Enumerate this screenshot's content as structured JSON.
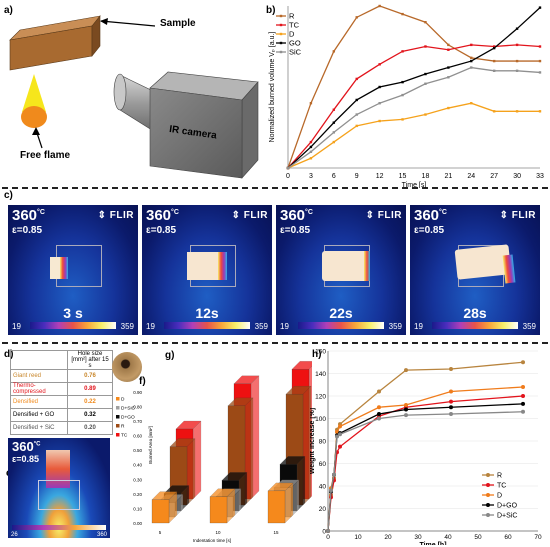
{
  "panels": {
    "a": "a)",
    "b": "b)",
    "c": "c)",
    "d": "d)",
    "e": "e)",
    "f": "f)",
    "g": "g)",
    "h": "h)"
  },
  "panel_a": {
    "sample_label": "Sample",
    "flame_label": "Free flame",
    "camera_label": "IR camera"
  },
  "thermal": {
    "temperature": "360",
    "unit": "°C",
    "emissivity": "ε=0.85",
    "brand": "FLIR",
    "scale_min": "19",
    "scale_max": "359",
    "frames": [
      {
        "time": "3 s"
      },
      {
        "time": "12s"
      },
      {
        "time": "22s"
      },
      {
        "time": "28s"
      }
    ]
  },
  "panel_d": {
    "header": "Hole size [mm²] after 15 s",
    "rows": [
      {
        "name": "Giant reed",
        "value": "0.76",
        "color": "#c8862a"
      },
      {
        "name": "Thermo-compressed",
        "value": "0.89",
        "color": "#e2141c"
      },
      {
        "name": "Densified",
        "value": "0.22",
        "color": "#f08a1c"
      },
      {
        "name": "Densified + GO",
        "value": "0.32",
        "color": "#000000"
      },
      {
        "name": "Densified + SiC",
        "value": "0.20",
        "color": "#555555"
      }
    ]
  },
  "panel_e": {
    "temperature": "360",
    "unit": "°C",
    "emissivity": "ε=0.85",
    "scale_min": "26",
    "scale_max": "360"
  },
  "chart_data": [
    {
      "id": "b",
      "type": "line",
      "title": "",
      "xlabel": "Time [s]",
      "ylabel": "Normalized burned volume Vₚ [a.u.]",
      "x": [
        0,
        3,
        6,
        9,
        12,
        15,
        18,
        21,
        24,
        27,
        30,
        33
      ],
      "xlim": [
        0,
        33
      ],
      "ylim": [
        0,
        1
      ],
      "legend": "top-left",
      "series": [
        {
          "name": "R",
          "color": "#b8692a",
          "values": [
            0,
            0.4,
            0.72,
            0.93,
            1.0,
            0.95,
            0.9,
            0.76,
            0.68,
            0.66,
            0.66,
            0.66
          ]
        },
        {
          "name": "TC",
          "color": "#e2141c",
          "values": [
            0,
            0.16,
            0.36,
            0.55,
            0.64,
            0.72,
            0.75,
            0.73,
            0.76,
            0.75,
            0.76,
            0.75
          ]
        },
        {
          "name": "D",
          "color": "#f5a21c",
          "values": [
            0,
            0.06,
            0.16,
            0.26,
            0.29,
            0.3,
            0.33,
            0.37,
            0.4,
            0.35,
            0.35,
            0.35
          ]
        },
        {
          "name": "GO",
          "color": "#000000",
          "values": [
            0,
            0.13,
            0.28,
            0.42,
            0.5,
            0.53,
            0.58,
            0.62,
            0.66,
            0.74,
            0.86,
            0.99
          ]
        },
        {
          "name": "SiC",
          "color": "#909090",
          "values": [
            0,
            0.1,
            0.22,
            0.33,
            0.4,
            0.45,
            0.52,
            0.56,
            0.62,
            0.6,
            0.6,
            0.59
          ]
        }
      ]
    },
    {
      "id": "g",
      "type": "bar",
      "title": "",
      "xlabel": "Indentation time [s]",
      "ylabel": "Burned Area [mm²]",
      "categories": [
        "5",
        "10",
        "15"
      ],
      "yticks": [
        "0.00",
        "0.10",
        "0.20",
        "0.30",
        "0.40",
        "0.50",
        "0.60",
        "0.70",
        "0.80",
        "0.90"
      ],
      "ylim": [
        0,
        1.2
      ],
      "legend": "left",
      "series": [
        {
          "name": "D",
          "color": "#f5891c",
          "values": [
            0.16,
            0.18,
            0.22
          ]
        },
        {
          "name": "D+SiC",
          "color": "#a0a0a0",
          "values": [
            0.1,
            0.14,
            0.2
          ]
        },
        {
          "name": "D+GO",
          "color": "#0a0a0a",
          "values": [
            0.12,
            0.21,
            0.32
          ]
        },
        {
          "name": "R",
          "color": "#9c4a16",
          "values": [
            0.4,
            0.68,
            0.76
          ]
        },
        {
          "name": "TC",
          "color": "#ee1111",
          "values": [
            0.48,
            0.79,
            0.89
          ]
        }
      ]
    },
    {
      "id": "h",
      "type": "line",
      "title": "",
      "xlabel": "Time [h]",
      "ylabel": "Weight increase [%]",
      "x": [
        0,
        1,
        2,
        3,
        4,
        17,
        26,
        41,
        65
      ],
      "xlim": [
        0,
        70
      ],
      "ylim": [
        0,
        160
      ],
      "xticks": [
        0,
        10,
        20,
        30,
        40,
        50,
        60,
        70
      ],
      "yticks": [
        0,
        20,
        40,
        60,
        80,
        100,
        120,
        140,
        160
      ],
      "legend": "bottom-right",
      "series": [
        {
          "name": "R",
          "color": "#b8843e",
          "values": [
            0,
            32,
            47,
            90,
            95,
            124,
            143,
            144,
            150
          ]
        },
        {
          "name": "TC",
          "color": "#e2141c",
          "values": [
            0,
            30,
            45,
            70,
            75,
            102,
            110,
            115,
            120
          ]
        },
        {
          "name": "D",
          "color": "#f07c1c",
          "values": [
            0,
            38,
            50,
            88,
            93,
            110,
            112,
            124,
            128
          ]
        },
        {
          "name": "D+GO",
          "color": "#000000",
          "values": [
            0,
            35,
            50,
            85,
            87,
            104,
            108,
            110,
            113
          ]
        },
        {
          "name": "D+SiC",
          "color": "#888888",
          "values": [
            0,
            36,
            50,
            84,
            86,
            100,
            103,
            104,
            106
          ]
        }
      ]
    }
  ]
}
